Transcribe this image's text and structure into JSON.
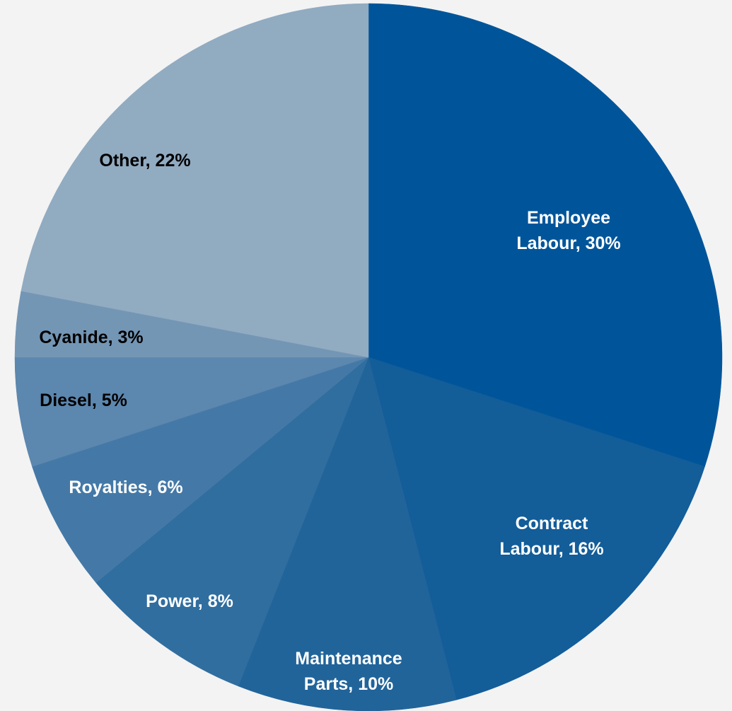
{
  "chart_data": {
    "type": "pie",
    "title": "",
    "start_angle_deg": 0,
    "direction": "clockwise",
    "legend": "none",
    "slices": [
      {
        "name": "Employee Labour",
        "value": 30,
        "label_lines": [
          "Employee",
          "Labour, 30%"
        ],
        "color": "#00559a",
        "label_color": "#ffffff"
      },
      {
        "name": "Contract Labour",
        "value": 16,
        "label_lines": [
          "Contract",
          "Labour, 16%"
        ],
        "color": "#135d99",
        "label_color": "#ffffff"
      },
      {
        "name": "Maintenance Parts",
        "value": 10,
        "label_lines": [
          "Maintenance",
          "Parts, 10%"
        ],
        "color": "#21649a",
        "label_color": "#ffffff"
      },
      {
        "name": "Power",
        "value": 8,
        "label_lines": [
          "Power, 8%"
        ],
        "color": "#306e9f",
        "label_color": "#ffffff"
      },
      {
        "name": "Royalties",
        "value": 6,
        "label_lines": [
          "Royalties, 6%"
        ],
        "color": "#4479a7",
        "label_color": "#ffffff"
      },
      {
        "name": "Diesel",
        "value": 5,
        "label_lines": [
          "Diesel, 5%"
        ],
        "color": "#5c87ae",
        "label_color": "#000000"
      },
      {
        "name": "Cyanide",
        "value": 3,
        "label_lines": [
          "Cyanide, 3%"
        ],
        "color": "#7496b5",
        "label_color": "#000000"
      },
      {
        "name": "Other",
        "value": 22,
        "label_lines": [
          "Other, 22%"
        ],
        "color": "#91abc1",
        "label_color": "#000000"
      }
    ]
  }
}
